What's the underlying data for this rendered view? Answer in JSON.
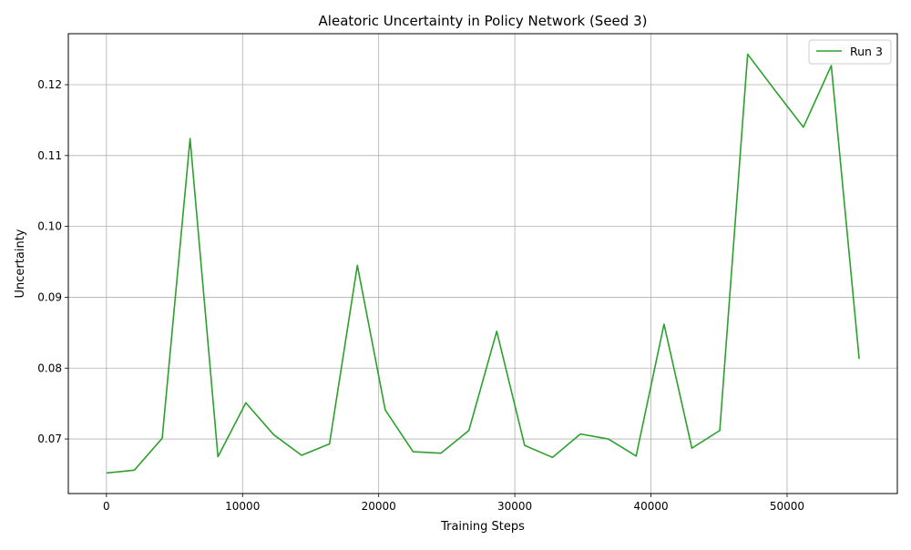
{
  "chart_data": {
    "type": "line",
    "title": "Aleatoric Uncertainty in Policy Network (Seed 3)",
    "xlabel": "Training Steps",
    "ylabel": "Uncertainty",
    "xlim": [
      -2800,
      58100
    ],
    "ylim": [
      0.0623,
      0.1272
    ],
    "xticks": [
      0,
      10000,
      20000,
      30000,
      40000,
      50000
    ],
    "xtick_labels": [
      "0",
      "10000",
      "20000",
      "30000",
      "40000",
      "50000"
    ],
    "yticks": [
      0.07,
      0.08,
      0.09,
      0.1,
      0.11,
      0.12
    ],
    "ytick_labels": [
      "0.07",
      "0.08",
      "0.09",
      "0.10",
      "0.11",
      "0.12"
    ],
    "grid": true,
    "legend_position": "top-right",
    "series": [
      {
        "name": "Run 3",
        "color": "#2ca02c",
        "x": [
          0,
          2048,
          4096,
          6144,
          8192,
          10240,
          12288,
          14336,
          16384,
          18432,
          20480,
          22528,
          24576,
          26624,
          28672,
          30720,
          32768,
          34816,
          36864,
          38912,
          40960,
          43008,
          45056,
          47104,
          49152,
          51200,
          53248,
          55296
        ],
        "y": [
          0.0652,
          0.0656,
          0.0701,
          0.1124,
          0.0675,
          0.0751,
          0.0706,
          0.0677,
          0.0693,
          0.0945,
          0.0741,
          0.0682,
          0.068,
          0.0712,
          0.0852,
          0.0691,
          0.0674,
          0.0707,
          0.07,
          0.0676,
          0.0862,
          0.0687,
          0.0712,
          0.1243,
          0.1191,
          0.114,
          0.1227,
          0.0813
        ]
      }
    ]
  }
}
